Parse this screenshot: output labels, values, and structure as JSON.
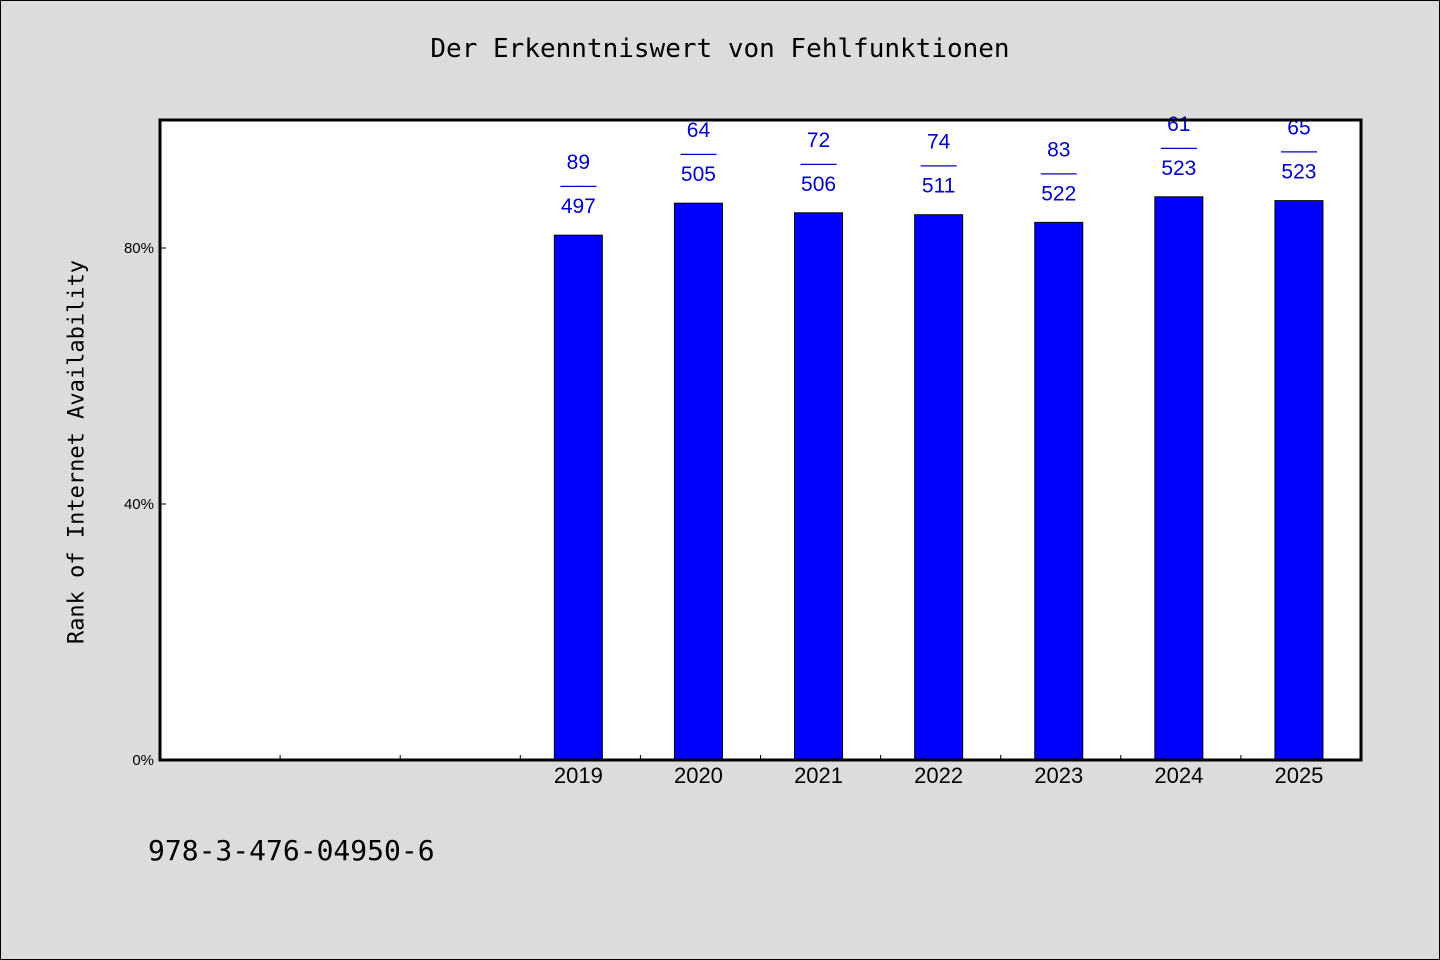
{
  "chart_data": {
    "type": "bar",
    "title": "Der Erkenntniswert von Fehlfunktionen",
    "ylabel": "Rank of Internet Availability",
    "xlabel": "",
    "categories": [
      "",
      "",
      "",
      "2019",
      "2020",
      "2021",
      "2022",
      "2023",
      "2024",
      "2025"
    ],
    "values": [
      null,
      null,
      null,
      82,
      87,
      85.5,
      85.2,
      84,
      88,
      87.4
    ],
    "annotations": [
      null,
      null,
      null,
      {
        "top": "89",
        "sep": "——",
        "bottom": "497"
      },
      {
        "top": "64",
        "sep": "——",
        "bottom": "505"
      },
      {
        "top": "72",
        "sep": "——",
        "bottom": "506"
      },
      {
        "top": "74",
        "sep": "——",
        "bottom": "511"
      },
      {
        "top": "83",
        "sep": "——",
        "bottom": "522"
      },
      {
        "top": "61",
        "sep": "——",
        "bottom": "523"
      },
      {
        "top": "65",
        "sep": "——",
        "bottom": "523"
      }
    ],
    "ylim": [
      0,
      100
    ],
    "yticks": [
      0,
      40,
      80
    ],
    "ytick_labels": [
      "0%",
      "40%",
      "80%"
    ],
    "grid": false,
    "colors": {
      "bar": "#0000ff",
      "label": "#0000cc",
      "background": "#dcdcdc",
      "plot_bg": "#ffffff"
    }
  },
  "footer_text": "978-3-476-04950-6"
}
